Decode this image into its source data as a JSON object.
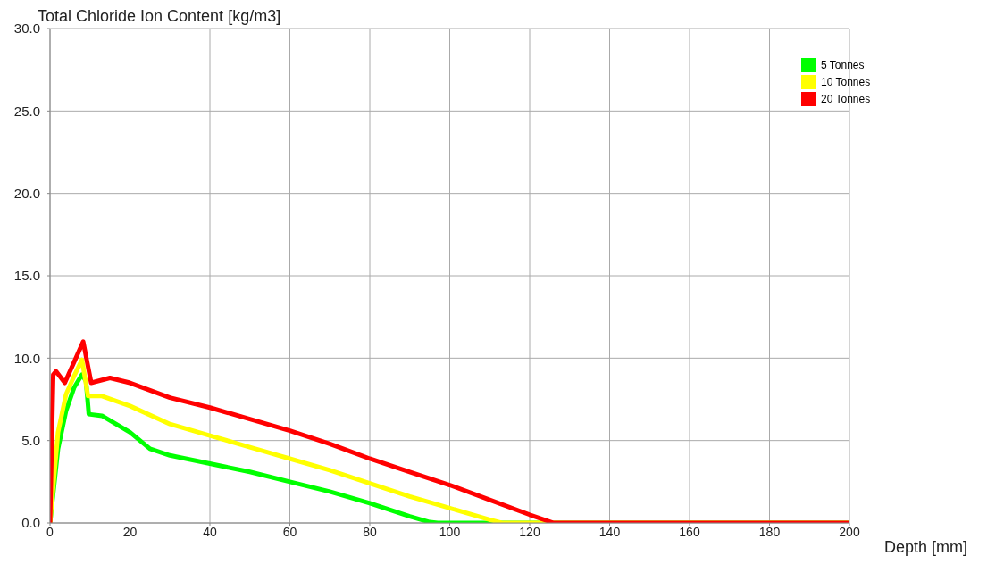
{
  "chart_data": {
    "type": "line",
    "ylabel": "Total Chloride Ion Content [kg/m3]",
    "xlabel": "Depth [mm]",
    "xlim": [
      0,
      200
    ],
    "xticks": [
      0,
      20,
      40,
      60,
      80,
      100,
      120,
      140,
      160,
      180,
      200
    ],
    "ylim": [
      0,
      30
    ],
    "yticks": [
      {
        "value": 0,
        "label": "0.0"
      },
      {
        "value": 5,
        "label": "5.0"
      },
      {
        "value": 10,
        "label": "10.0"
      },
      {
        "value": 15,
        "label": "15.0"
      },
      {
        "value": 20,
        "label": "20.0"
      },
      {
        "value": 25,
        "label": "25.0"
      },
      {
        "value": 30,
        "label": "30.0"
      }
    ],
    "grid": true,
    "legend": "top right",
    "marker": "none",
    "line_style": "solid",
    "series": [
      {
        "name": "5 Tonnes",
        "color": "#00ff00",
        "x": [
          0,
          2,
          4,
          6,
          8,
          9,
          9.7,
          13,
          20,
          25,
          30,
          40,
          50,
          60,
          70,
          80,
          90,
          95,
          97,
          200
        ],
        "values": [
          0,
          4.5,
          6.8,
          8.2,
          9,
          8.6,
          6.6,
          6.5,
          5.5,
          4.5,
          4.1,
          3.6,
          3.1,
          2.5,
          1.9,
          1.2,
          0.4,
          0.05,
          0,
          0
        ]
      },
      {
        "name": "10 Tonnes",
        "color": "#ffff00",
        "x": [
          0,
          2,
          4,
          6,
          8,
          9.5,
          13,
          20,
          30,
          40,
          50,
          60,
          70,
          80,
          90,
          100,
          110,
          113,
          200
        ],
        "values": [
          0,
          5.5,
          7.8,
          8.9,
          9.9,
          7.7,
          7.7,
          7.1,
          6,
          5.3,
          4.6,
          3.9,
          3.2,
          2.4,
          1.6,
          0.9,
          0.2,
          0,
          0
        ]
      },
      {
        "name": "20 Tonnes",
        "color": "#ff0000",
        "x": [
          0,
          0.8,
          1.5,
          3.7,
          8.3,
          10.3,
          15,
          20,
          30,
          40,
          50,
          60,
          70,
          80,
          90,
          100,
          110,
          120,
          126,
          200
        ],
        "values": [
          0,
          9,
          9.2,
          8.5,
          11,
          8.5,
          8.8,
          8.5,
          7.6,
          7,
          6.3,
          5.6,
          4.8,
          3.9,
          3.1,
          2.3,
          1.4,
          0.5,
          0,
          0
        ]
      }
    ]
  }
}
